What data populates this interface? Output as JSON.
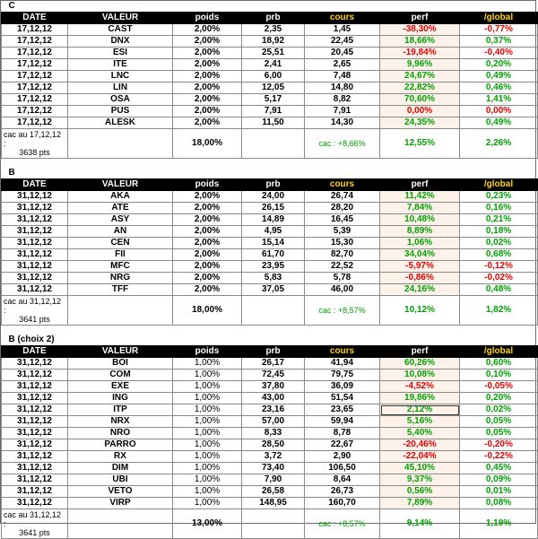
{
  "headers": [
    "DATE",
    "VALEUR",
    "poids",
    "prb",
    "cours",
    "perf",
    "/global"
  ],
  "sections": [
    {
      "title": "C",
      "weight_bold": true,
      "rows": [
        {
          "date": "17,12,12",
          "valeur": "CAST",
          "poids": "2,00%",
          "prb": "2,35",
          "cours": "1,45",
          "perf": "-38,30%",
          "global": "-0,77%",
          "sign": "neg"
        },
        {
          "date": "17,12,12",
          "valeur": "DNX",
          "poids": "2,00%",
          "prb": "18,92",
          "cours": "22,45",
          "perf": "18,66%",
          "global": "0,37%",
          "sign": "pos"
        },
        {
          "date": "17,12,12",
          "valeur": "ESI",
          "poids": "2,00%",
          "prb": "25,51",
          "cours": "20,45",
          "perf": "-19,84%",
          "global": "-0,40%",
          "sign": "neg"
        },
        {
          "date": "17,12,12",
          "valeur": "ITE",
          "poids": "2,00%",
          "prb": "2,41",
          "cours": "2,65",
          "perf": "9,96%",
          "global": "0,20%",
          "sign": "pos"
        },
        {
          "date": "17,12,12",
          "valeur": "LNC",
          "poids": "2,00%",
          "prb": "6,00",
          "cours": "7,48",
          "perf": "24,67%",
          "global": "0,49%",
          "sign": "pos"
        },
        {
          "date": "17,12,12",
          "valeur": "LIN",
          "poids": "2,00%",
          "prb": "12,05",
          "cours": "14,80",
          "perf": "22,82%",
          "global": "0,46%",
          "sign": "pos"
        },
        {
          "date": "17,12,12",
          "valeur": "OSA",
          "poids": "2,00%",
          "prb": "5,17",
          "cours": "8,82",
          "perf": "70,60%",
          "global": "1,41%",
          "sign": "pos"
        },
        {
          "date": "17,12,12",
          "valeur": "PUS",
          "poids": "2,00%",
          "prb": "7,91",
          "cours": "7,91",
          "perf": "0,00%",
          "global": "0,00%",
          "sign": "neg"
        },
        {
          "date": "17,12,12",
          "valeur": "ALESK",
          "poids": "2,00%",
          "prb": "11,50",
          "cours": "14,30",
          "perf": "24,35%",
          "global": "0,49%",
          "sign": "pos"
        }
      ],
      "total": {
        "cac_label": "cac au 17,12,12 :",
        "cac_pts": "3638 pts",
        "poids": "18,00%",
        "cac_perf": "cac : +8,66%",
        "perf": "12,55%",
        "global": "2,26%"
      }
    },
    {
      "title": "B",
      "weight_bold": true,
      "rows": [
        {
          "date": "31,12,12",
          "valeur": "AKA",
          "poids": "2,00%",
          "prb": "24,00",
          "cours": "26,74",
          "perf": "11,42%",
          "global": "0,23%",
          "sign": "pos"
        },
        {
          "date": "31,12,12",
          "valeur": "ATE",
          "poids": "2,00%",
          "prb": "26,15",
          "cours": "28,20",
          "perf": "7,84%",
          "global": "0,16%",
          "sign": "pos"
        },
        {
          "date": "31,12,12",
          "valeur": "ASY",
          "poids": "2,00%",
          "prb": "14,89",
          "cours": "16,45",
          "perf": "10,48%",
          "global": "0,21%",
          "sign": "pos"
        },
        {
          "date": "31,12,12",
          "valeur": "AN",
          "poids": "2,00%",
          "prb": "4,95",
          "cours": "5,39",
          "perf": "8,89%",
          "global": "0,18%",
          "sign": "pos"
        },
        {
          "date": "31,12,12",
          "valeur": "CEN",
          "poids": "2,00%",
          "prb": "15,14",
          "cours": "15,30",
          "perf": "1,06%",
          "global": "0,02%",
          "sign": "pos"
        },
        {
          "date": "31,12,12",
          "valeur": "FII",
          "poids": "2,00%",
          "prb": "61,70",
          "cours": "82,70",
          "perf": "34,04%",
          "global": "0,68%",
          "sign": "pos"
        },
        {
          "date": "31,12,12",
          "valeur": "MFC",
          "poids": "2,00%",
          "prb": "23,95",
          "cours": "22,52",
          "perf": "-5,97%",
          "global": "-0,12%",
          "sign": "neg"
        },
        {
          "date": "31,12,12",
          "valeur": "NRG",
          "poids": "2,00%",
          "prb": "5,83",
          "cours": "5,78",
          "perf": "-0,86%",
          "global": "-0,02%",
          "sign": "neg"
        },
        {
          "date": "31,12,12",
          "valeur": "TFF",
          "poids": "2,00%",
          "prb": "37,05",
          "cours": "46,00",
          "perf": "24,16%",
          "global": "0,48%",
          "sign": "pos"
        }
      ],
      "total": {
        "cac_label": "cac au 31,12,12 :",
        "cac_pts": "3641 pts",
        "poids": "18,00%",
        "cac_perf": "cac : +8,57%",
        "perf": "10,12%",
        "global": "1,82%"
      }
    },
    {
      "title": "B (choix 2)",
      "weight_bold": false,
      "rows": [
        {
          "date": "31,12,12",
          "valeur": "BOI",
          "poids": "1,00%",
          "prb": "26,17",
          "cours": "41,94",
          "perf": "60,26%",
          "global": "0,60%",
          "sign": "pos"
        },
        {
          "date": "31,12,12",
          "valeur": "COM",
          "poids": "1,00%",
          "prb": "72,45",
          "cours": "79,75",
          "perf": "10,08%",
          "global": "0,10%",
          "sign": "pos"
        },
        {
          "date": "31,12,12",
          "valeur": "EXE",
          "poids": "1,00%",
          "prb": "37,80",
          "cours": "36,09",
          "perf": "-4,52%",
          "global": "-0,05%",
          "sign": "neg"
        },
        {
          "date": "31,12,12",
          "valeur": "ING",
          "poids": "1,00%",
          "prb": "43,00",
          "cours": "51,54",
          "perf": "19,86%",
          "global": "0,20%",
          "sign": "pos"
        },
        {
          "date": "31,12,12",
          "valeur": "ITP",
          "poids": "1,00%",
          "prb": "23,16",
          "cours": "23,65",
          "perf": "2,12%",
          "global": "0,02%",
          "sign": "pos",
          "selected": true
        },
        {
          "date": "31,12,12",
          "valeur": "NRX",
          "poids": "1,00%",
          "prb": "57,00",
          "cours": "59,94",
          "perf": "5,16%",
          "global": "0,05%",
          "sign": "pos"
        },
        {
          "date": "31,12,12",
          "valeur": "NRO",
          "poids": "1,00%",
          "prb": "8,33",
          "cours": "8,78",
          "perf": "5,40%",
          "global": "0,05%",
          "sign": "pos"
        },
        {
          "date": "31,12,12",
          "valeur": "PARRO",
          "poids": "1,00%",
          "prb": "28,50",
          "cours": "22,67",
          "perf": "-20,46%",
          "global": "-0,20%",
          "sign": "neg"
        },
        {
          "date": "31,12,12",
          "valeur": "RX",
          "poids": "1,00%",
          "prb": "3,72",
          "cours": "2,90",
          "perf": "-22,04%",
          "global": "-0,22%",
          "sign": "neg"
        },
        {
          "date": "31,12,12",
          "valeur": "DIM",
          "poids": "1,00%",
          "prb": "73,40",
          "cours": "106,50",
          "perf": "45,10%",
          "global": "0,45%",
          "sign": "pos"
        },
        {
          "date": "31,12,12",
          "valeur": "UBI",
          "poids": "1,00%",
          "prb": "7,90",
          "cours": "8,64",
          "perf": "9,37%",
          "global": "0,09%",
          "sign": "pos"
        },
        {
          "date": "31,12,12",
          "valeur": "VETO",
          "poids": "1,00%",
          "prb": "26,58",
          "cours": "26,73",
          "perf": "0,56%",
          "global": "0,01%",
          "sign": "pos"
        },
        {
          "date": "31,12,12",
          "valeur": "VIRP",
          "poids": "1,00%",
          "prb": "148,95",
          "cours": "160,70",
          "perf": "7,89%",
          "global": "0,08%",
          "sign": "pos"
        }
      ],
      "total": {
        "cac_label": "cac au 31,12,12 :",
        "cac_pts": "3641 pts",
        "poids": "13,00%",
        "cac_perf": "cac : +8,57%",
        "perf": "9,14%",
        "global": "1,19%"
      }
    }
  ],
  "colors": {
    "positive": "#00a000",
    "negative": "#e00000",
    "header_bg": "#000000",
    "header_accent": "#ffd21a"
  }
}
